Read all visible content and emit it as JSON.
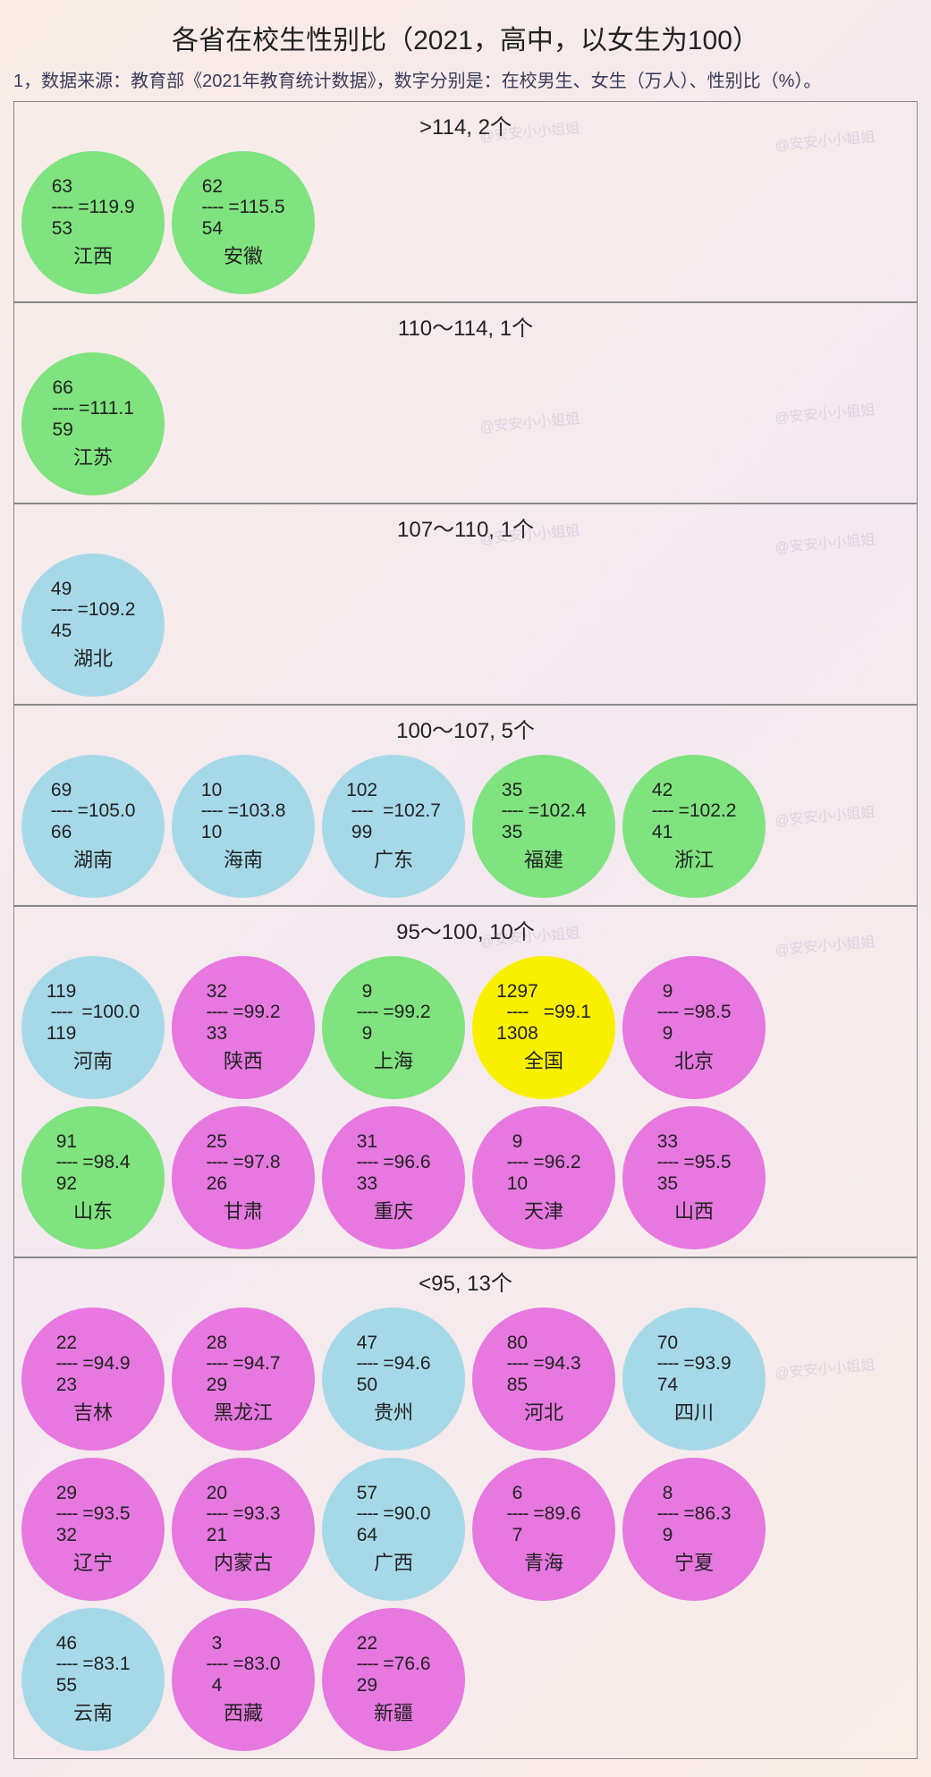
{
  "title": "各省在校生性别比（2021，高中，以女生为100）",
  "subtitle": "1，数据来源：教育部《2021年教育统计数据》，数字分别是：在校男生、女生（万人）、性别比（%）。",
  "colors": {
    "green": "#7fe37f",
    "blue": "#a6d9e8",
    "pink": "#e678e0",
    "yellow": "#f9f000"
  },
  "watermark_text": "@安安小小姐姐",
  "groups": [
    {
      "header": ">114, 2个",
      "items": [
        {
          "male": "63",
          "female": "53",
          "ratio": "119.9",
          "province": "江西",
          "color": "green"
        },
        {
          "male": "62",
          "female": "54",
          "ratio": "115.5",
          "province": "安徽",
          "color": "green"
        }
      ]
    },
    {
      "header": "110～114, 1个",
      "items": [
        {
          "male": "66",
          "female": "59",
          "ratio": "111.1",
          "province": "江苏",
          "color": "green"
        }
      ]
    },
    {
      "header": "107～110, 1个",
      "items": [
        {
          "male": "49",
          "female": "45",
          "ratio": "109.2",
          "province": "湖北",
          "color": "blue"
        }
      ]
    },
    {
      "header": "100～107, 5个",
      "items": [
        {
          "male": "69",
          "female": "66",
          "ratio": "105.0",
          "province": "湖南",
          "color": "blue"
        },
        {
          "male": "10",
          "female": "10",
          "ratio": "103.8",
          "province": "海南",
          "color": "blue"
        },
        {
          "male": "102",
          "female": "99",
          "ratio": "102.7",
          "province": "广东",
          "color": "blue"
        },
        {
          "male": "35",
          "female": "35",
          "ratio": "102.4",
          "province": "福建",
          "color": "green"
        },
        {
          "male": "42",
          "female": "41",
          "ratio": "102.2",
          "province": "浙江",
          "color": "green"
        }
      ]
    },
    {
      "header": "95～100, 10个",
      "items": [
        {
          "male": "119",
          "female": "119",
          "ratio": "100.0",
          "province": "河南",
          "color": "blue"
        },
        {
          "male": "32",
          "female": "33",
          "ratio": "99.2",
          "province": "陕西",
          "color": "pink"
        },
        {
          "male": "9",
          "female": "9",
          "ratio": "99.2",
          "province": "上海",
          "color": "green"
        },
        {
          "male": "1297",
          "female": "1308",
          "ratio": "99.1",
          "province": "全国",
          "color": "yellow"
        },
        {
          "male": "9",
          "female": "9",
          "ratio": "98.5",
          "province": "北京",
          "color": "pink"
        },
        {
          "male": "91",
          "female": "92",
          "ratio": "98.4",
          "province": "山东",
          "color": "green"
        },
        {
          "male": "25",
          "female": "26",
          "ratio": "97.8",
          "province": "甘肃",
          "color": "pink"
        },
        {
          "male": "31",
          "female": "33",
          "ratio": "96.6",
          "province": "重庆",
          "color": "pink"
        },
        {
          "male": "9",
          "female": "10",
          "ratio": "96.2",
          "province": "天津",
          "color": "pink"
        },
        {
          "male": "33",
          "female": "35",
          "ratio": "95.5",
          "province": "山西",
          "color": "pink"
        }
      ]
    },
    {
      "header": "<95, 13个",
      "items": [
        {
          "male": "22",
          "female": "23",
          "ratio": "94.9",
          "province": "吉林",
          "color": "pink"
        },
        {
          "male": "28",
          "female": "29",
          "ratio": "94.7",
          "province": "黑龙江",
          "color": "pink"
        },
        {
          "male": "47",
          "female": "50",
          "ratio": "94.6",
          "province": "贵州",
          "color": "blue"
        },
        {
          "male": "80",
          "female": "85",
          "ratio": "94.3",
          "province": "河北",
          "color": "pink"
        },
        {
          "male": "70",
          "female": "74",
          "ratio": "93.9",
          "province": "四川",
          "color": "blue"
        },
        {
          "male": "29",
          "female": "32",
          "ratio": "93.5",
          "province": "辽宁",
          "color": "pink"
        },
        {
          "male": "20",
          "female": "21",
          "ratio": "93.3",
          "province": "内蒙古",
          "color": "pink"
        },
        {
          "male": "57",
          "female": "64",
          "ratio": "90.0",
          "province": "广西",
          "color": "blue"
        },
        {
          "male": "6",
          "female": "7",
          "ratio": "89.6",
          "province": "青海",
          "color": "pink"
        },
        {
          "male": "8",
          "female": "9",
          "ratio": "86.3",
          "province": "宁夏",
          "color": "pink"
        },
        {
          "male": "46",
          "female": "55",
          "ratio": "83.1",
          "province": "云南",
          "color": "blue"
        },
        {
          "male": "3",
          "female": "4",
          "ratio": "83.0",
          "province": "西藏",
          "color": "pink"
        },
        {
          "male": "22",
          "female": "29",
          "ratio": "76.6",
          "province": "新疆",
          "color": "pink"
        }
      ]
    }
  ]
}
